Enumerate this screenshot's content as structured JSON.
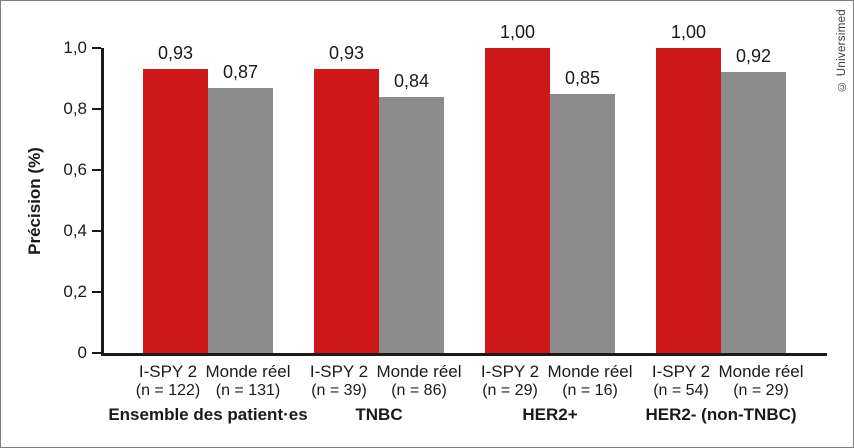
{
  "figure": {
    "credit": "© Universimed",
    "background_color": "#ffffff",
    "border_color": "#7f7f7f",
    "axis_color": "#1a1a1a",
    "text_color": "#1a1a1a"
  },
  "chart_data": {
    "type": "bar",
    "title": "",
    "xlabel": "",
    "ylabel": "Précision (%)",
    "ylim": [
      0,
      1.0
    ],
    "ytick_labels": [
      "0",
      "0,2",
      "0,4",
      "0,6",
      "0,8",
      "1,0"
    ],
    "ytick_values": [
      0,
      0.2,
      0.4,
      0.6,
      0.8,
      1.0
    ],
    "grid": false,
    "legend_position": "none",
    "decimal_style": "comma",
    "series": [
      {
        "name": "I-SPY 2",
        "color": "#cd1719"
      },
      {
        "name": "Monde réel",
        "color": "#8c8c8c"
      }
    ],
    "categories": [
      "Ensemble des patient·es",
      "TNBC",
      "HER2+",
      "HER2- (non-TNBC)"
    ],
    "groups": [
      {
        "label": "Ensemble des patient·es",
        "bars": [
          {
            "series": "I-SPY 2",
            "value": 0.93,
            "value_label": "0,93",
            "n_label": "(n = 122)"
          },
          {
            "series": "Monde réel",
            "value": 0.87,
            "value_label": "0,87",
            "n_label": "(n = 131)"
          }
        ]
      },
      {
        "label": "TNBC",
        "bars": [
          {
            "series": "I-SPY 2",
            "value": 0.93,
            "value_label": "0,93",
            "n_label": "(n = 39)"
          },
          {
            "series": "Monde réel",
            "value": 0.84,
            "value_label": "0,84",
            "n_label": "(n = 86)"
          }
        ]
      },
      {
        "label": "HER2+",
        "bars": [
          {
            "series": "I-SPY 2",
            "value": 1.0,
            "value_label": "1,00",
            "n_label": "(n = 29)"
          },
          {
            "series": "Monde réel",
            "value": 0.85,
            "value_label": "0,85",
            "n_label": "(n = 16)"
          }
        ]
      },
      {
        "label": "HER2- (non-TNBC)",
        "bars": [
          {
            "series": "I-SPY 2",
            "value": 1.0,
            "value_label": "1,00",
            "n_label": "(n = 54)"
          },
          {
            "series": "Monde réel",
            "value": 0.92,
            "value_label": "0,92",
            "n_label": "(n = 29)"
          }
        ]
      }
    ]
  }
}
